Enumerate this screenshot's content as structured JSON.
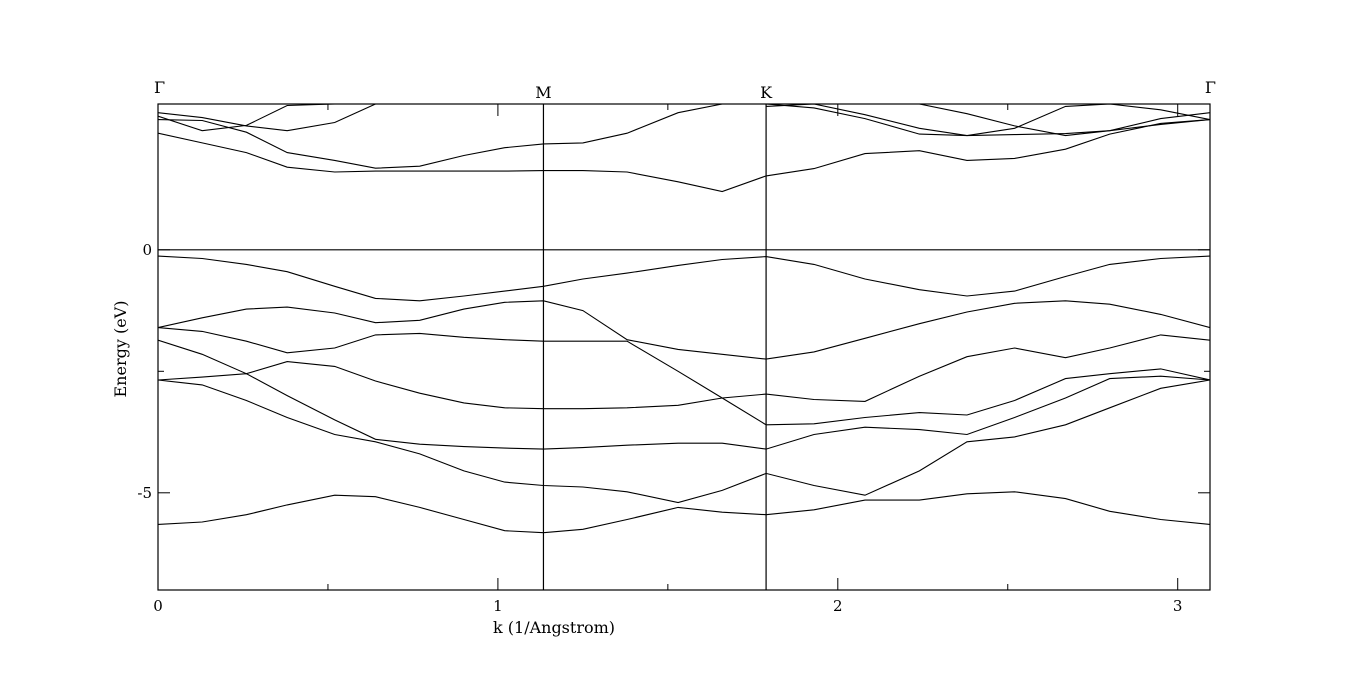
{
  "chart_data": {
    "type": "line",
    "title": "",
    "xlabel": "k (1/Angstrom)",
    "ylabel": "Energy (eV)",
    "xlim": [
      0,
      3.095
    ],
    "ylim": [
      -7.0,
      3.0
    ],
    "x_ticks": [
      {
        "value": 0,
        "label": "0"
      },
      {
        "value": 1,
        "label": "1"
      },
      {
        "value": 2,
        "label": "2"
      },
      {
        "value": 3,
        "label": "3"
      }
    ],
    "x_minor_ticks": [
      0.5,
      1.5,
      2.5
    ],
    "y_ticks": [
      {
        "value": 0,
        "label": "0"
      },
      {
        "value": -5,
        "label": "-5"
      }
    ],
    "y_minor_ticks": [
      -2.5
    ],
    "high_symmetry_points": [
      {
        "value": 0,
        "label": "Γ"
      },
      {
        "value": 1.134,
        "label": "M"
      },
      {
        "value": 1.789,
        "label": "K"
      },
      {
        "value": 3.095,
        "label": "Γ"
      }
    ],
    "fermi_level": 0,
    "grid": false,
    "legend": "none",
    "series": [
      {
        "x": [
          0,
          0.13,
          0.26,
          0.38,
          0.52,
          0.64,
          0.77,
          0.9,
          1.02,
          1.134,
          1.25,
          1.38,
          1.53,
          1.66,
          1.789,
          1.93,
          2.08,
          2.24,
          2.38,
          2.52,
          2.67,
          2.8,
          2.95,
          3.095
        ],
        "y": [
          -0.13,
          -0.18,
          -0.3,
          -0.45,
          -0.75,
          -1.0,
          -1.05,
          -0.95,
          -0.85,
          -0.75,
          -0.6,
          -0.48,
          -0.32,
          -0.2,
          -0.14,
          -0.3,
          -0.6,
          -0.82,
          -0.95,
          -0.85,
          -0.55,
          -0.3,
          -0.18,
          -0.13
        ]
      },
      {
        "x": [
          0,
          0.13,
          0.26,
          0.38,
          0.52,
          0.64,
          0.77,
          0.9,
          1.02,
          1.134,
          1.25,
          1.38,
          1.53,
          1.66,
          1.789,
          1.93,
          2.08,
          2.24,
          2.38,
          2.52,
          2.67,
          2.8,
          2.95,
          3.095
        ],
        "y": [
          -1.6,
          -1.4,
          -1.22,
          -1.18,
          -1.3,
          -1.5,
          -1.45,
          -1.22,
          -1.08,
          -1.05,
          -1.25,
          -1.85,
          -2.05,
          -2.15,
          -2.25,
          -2.1,
          -1.82,
          -1.52,
          -1.28,
          -1.1,
          -1.05,
          -1.12,
          -1.33,
          -1.6
        ]
      },
      {
        "x": [
          0,
          0.13,
          0.26,
          0.38,
          0.52,
          0.64,
          0.77,
          0.9,
          1.02,
          1.134,
          1.25,
          1.38,
          1.53,
          1.66,
          1.789,
          1.93,
          2.08,
          2.24,
          2.38,
          2.52,
          2.67,
          2.8,
          2.95,
          3.095
        ],
        "y": [
          -1.6,
          -1.68,
          -1.88,
          -2.12,
          -2.02,
          -1.75,
          -1.72,
          -1.8,
          -1.85,
          -1.88,
          -1.88,
          -1.88,
          -2.5,
          -3.05,
          -3.6,
          -3.58,
          -3.45,
          -3.35,
          -3.4,
          -3.1,
          -2.65,
          -2.55,
          -2.45,
          -2.68
        ]
      },
      {
        "x": [
          0,
          0.13,
          0.26,
          0.38,
          0.52,
          0.64,
          0.77,
          0.9,
          1.02,
          1.134,
          1.25,
          1.38,
          1.53,
          1.66,
          1.789,
          1.93,
          2.08,
          2.24,
          2.38,
          2.52,
          2.67,
          2.8,
          2.95,
          3.095
        ],
        "y": [
          -1.86,
          -2.15,
          -2.55,
          -2.3,
          -2.4,
          -2.7,
          -2.95,
          -3.15,
          -3.25,
          -3.27,
          -3.27,
          -3.25,
          -3.2,
          -3.05,
          -2.97,
          -3.08,
          -3.12,
          -2.6,
          -2.2,
          -2.02,
          -2.22,
          -2.02,
          -1.75,
          -1.86
        ]
      },
      {
        "x": [
          0,
          0.13,
          0.26,
          0.38,
          0.52,
          0.64,
          0.77,
          0.9,
          1.02,
          1.134,
          1.25,
          1.38,
          1.53,
          1.66,
          1.789,
          1.93,
          2.08,
          2.24,
          2.38,
          2.52,
          2.67,
          2.8,
          2.95,
          3.095
        ],
        "y": [
          -2.68,
          -2.62,
          -2.55,
          -3.0,
          -3.5,
          -3.9,
          -4.0,
          -4.05,
          -4.08,
          -4.1,
          -4.07,
          -4.02,
          -3.98,
          -3.98,
          -4.1,
          -3.8,
          -3.65,
          -3.7,
          -3.8,
          -3.45,
          -3.05,
          -2.65,
          -2.6,
          -2.68
        ]
      },
      {
        "x": [
          0,
          0.13,
          0.26,
          0.38,
          0.52,
          0.64,
          0.77,
          0.9,
          1.02,
          1.134,
          1.25,
          1.38,
          1.53,
          1.66,
          1.789,
          1.93,
          2.08,
          2.24,
          2.38,
          2.52,
          2.67,
          2.8,
          2.95,
          3.095
        ],
        "y": [
          -2.68,
          -2.78,
          -3.1,
          -3.45,
          -3.8,
          -3.95,
          -4.2,
          -4.55,
          -4.78,
          -4.85,
          -4.88,
          -4.98,
          -5.2,
          -4.95,
          -4.6,
          -4.85,
          -5.05,
          -4.55,
          -3.95,
          -3.85,
          -3.6,
          -3.25,
          -2.85,
          -2.68
        ]
      },
      {
        "x": [
          0,
          0.13,
          0.26,
          0.38,
          0.52,
          0.64,
          0.77,
          0.9,
          1.02,
          1.134,
          1.25,
          1.38,
          1.53,
          1.66,
          1.789,
          1.93,
          2.08,
          2.24,
          2.38,
          2.52,
          2.67,
          2.8,
          2.95,
          3.095
        ],
        "y": [
          -5.65,
          -5.6,
          -5.45,
          -5.25,
          -5.05,
          -5.08,
          -5.3,
          -5.55,
          -5.78,
          -5.82,
          -5.75,
          -5.55,
          -5.3,
          -5.4,
          -5.45,
          -5.35,
          -5.15,
          -5.15,
          -5.02,
          -4.98,
          -5.12,
          -5.38,
          -5.55,
          -5.65
        ]
      },
      {
        "x": [
          0,
          0.13,
          0.26,
          0.38,
          0.52,
          0.64,
          0.77,
          0.9,
          1.02,
          1.134,
          1.25,
          1.38,
          1.53,
          1.66,
          1.789,
          1.93,
          2.08,
          2.24,
          2.38,
          2.52,
          2.67,
          2.8,
          2.95,
          3.095
        ],
        "y": [
          2.4,
          2.2,
          2.0,
          1.7,
          1.6,
          1.62,
          1.62,
          1.62,
          1.62,
          1.63,
          1.63,
          1.6,
          1.4,
          1.2,
          1.52,
          1.67,
          1.98,
          2.04,
          1.84,
          1.88,
          2.07,
          2.38,
          2.6,
          2.68
        ]
      },
      {
        "x": [
          0,
          0.13,
          0.26,
          0.38,
          0.52,
          0.64,
          0.77,
          0.9,
          1.02,
          1.134,
          1.25,
          1.38,
          1.53,
          1.66,
          1.789,
          1.93,
          2.08,
          2.24,
          2.38,
          2.52,
          2.67,
          2.8,
          2.95,
          3.095
        ],
        "y": [
          2.68,
          2.66,
          2.42,
          2.0,
          1.84,
          1.68,
          1.72,
          1.94,
          2.1,
          2.18,
          2.2,
          2.4,
          2.82,
          3.0,
          3.0,
          2.92,
          2.7,
          2.38,
          2.35,
          2.37,
          2.39,
          2.45,
          2.58,
          2.68
        ]
      },
      {
        "x": [
          0,
          0.13,
          0.26,
          0.38,
          0.52,
          0.64,
          0.77
        ],
        "y": [
          2.82,
          2.72,
          2.55,
          2.45,
          2.62,
          3.0,
          3.0
        ]
      },
      {
        "x": [
          0,
          0.13,
          0.26,
          0.38,
          0.52,
          0.64,
          0.77
        ],
        "y": [
          2.75,
          2.45,
          2.56,
          2.97,
          3.0,
          3.0,
          3.0
        ]
      },
      {
        "x": [
          1.789,
          1.93,
          2.08,
          2.24,
          2.38,
          2.52,
          2.67,
          2.8,
          2.95,
          3.095
        ],
        "y": [
          2.95,
          3.0,
          2.78,
          2.5,
          2.35,
          2.5,
          2.95,
          3.0,
          2.88,
          2.68
        ]
      },
      {
        "x": [
          1.789,
          1.93,
          2.08,
          2.24,
          2.38,
          2.52,
          2.67,
          2.8,
          2.95,
          3.095
        ],
        "y": [
          3.0,
          3.0,
          3.0,
          3.0,
          2.8,
          2.55,
          2.35,
          2.45,
          2.7,
          2.82
        ]
      }
    ]
  }
}
